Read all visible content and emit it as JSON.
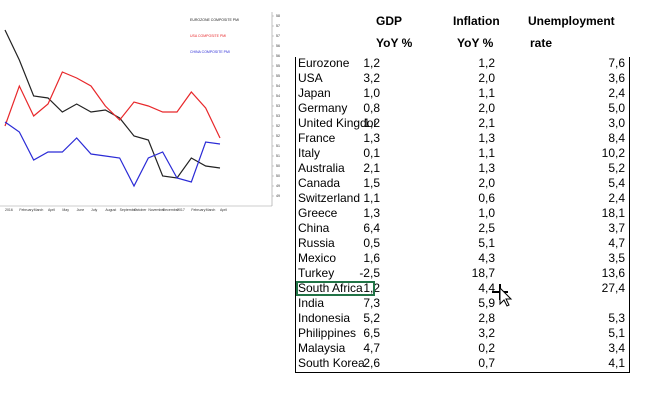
{
  "chart_data": {
    "type": "line",
    "categories": [
      "2016",
      "February",
      "March",
      "April",
      "May",
      "June",
      "July",
      "August",
      "September",
      "October",
      "November",
      "December",
      "2017",
      "February",
      "March",
      "April"
    ],
    "series": [
      {
        "name": "EUROZONE COMPOSITE PMI",
        "color": "#222222",
        "values": [
          57.3,
          55.8,
          54.0,
          53.9,
          53.2,
          53.6,
          53.2,
          53.3,
          52.9,
          52.0,
          51.8,
          50.0,
          49.9,
          50.9,
          50.5,
          50.4
        ]
      },
      {
        "name": "USA COMPOSITE PMI",
        "color": "#e8282b",
        "values": [
          52.5,
          54.5,
          53.0,
          53.6,
          55.2,
          54.9,
          54.5,
          53.5,
          52.8,
          53.7,
          53.5,
          53.2,
          53.2,
          54.2,
          53.4,
          51.9
        ]
      },
      {
        "name": "CHINA COMPOSITE PMI",
        "color": "#2b2bd6",
        "values": [
          52.7,
          52.2,
          50.8,
          51.2,
          51.2,
          51.9,
          51.1,
          51.0,
          50.9,
          49.5,
          50.9,
          51.2,
          49.9,
          49.7,
          51.7,
          51.6
        ]
      }
    ],
    "ylim": [
      48.5,
      58
    ],
    "yticks": [
      {
        "value": 58,
        "label": "58.0"
      },
      {
        "value": 57.5,
        "label": "57.5"
      },
      {
        "value": 57,
        "label": "57.0"
      },
      {
        "value": 56.5,
        "label": "56.5"
      },
      {
        "value": 56,
        "label": "56.0"
      },
      {
        "value": 55.5,
        "label": "55.5"
      },
      {
        "value": 55,
        "label": "55.0"
      },
      {
        "value": 54.5,
        "label": "54.5"
      },
      {
        "value": 54,
        "label": "54.0"
      },
      {
        "value": 53.5,
        "label": "53.5"
      },
      {
        "value": 53,
        "label": "53.0"
      },
      {
        "value": 52.5,
        "label": "52.5"
      },
      {
        "value": 52,
        "label": "52.0"
      },
      {
        "value": 51.5,
        "label": "51.5"
      },
      {
        "value": 51,
        "label": "51.0"
      },
      {
        "value": 50.5,
        "label": "50.5"
      },
      {
        "value": 50,
        "label": "50.0"
      },
      {
        "value": 49.5,
        "label": "49.5"
      },
      {
        "value": 49,
        "label": "49.0"
      }
    ]
  },
  "table": {
    "header": [
      [
        "GDP",
        "YoY %"
      ],
      [
        "Inflation",
        "YoY %"
      ],
      [
        "Unemployment",
        "rate"
      ]
    ],
    "rows": [
      [
        "Eurozone",
        "1,2",
        "1,2",
        "7,6"
      ],
      [
        "USA",
        "3,2",
        "2,0",
        "3,6"
      ],
      [
        "Japan",
        "1,0",
        "1,1",
        "2,4"
      ],
      [
        "Germany",
        "0,8",
        "2,0",
        "5,0"
      ],
      [
        "United Kingdom",
        "1,2",
        "2,1",
        "3,0"
      ],
      [
        "France",
        "1,3",
        "1,3",
        "8,4"
      ],
      [
        "Italy",
        "0,1",
        "1,1",
        "10,2"
      ],
      [
        "Australia",
        "2,1",
        "1,3",
        "5,2"
      ],
      [
        "Canada",
        "1,5",
        "2,0",
        "5,4"
      ],
      [
        "Switzerland",
        "1,1",
        "0,6",
        "2,4"
      ],
      [
        "Greece",
        "1,3",
        "1,0",
        "18,1"
      ],
      [
        "China",
        "6,4",
        "2,5",
        "3,7"
      ],
      [
        "Russia",
        "0,5",
        "5,1",
        "4,7"
      ],
      [
        "Mexico",
        "1,6",
        "4,3",
        "3,5"
      ],
      [
        "Turkey",
        "-2,5",
        "18,7",
        "13,6"
      ],
      [
        "South Africa",
        "1,2",
        "4,4",
        "27,4"
      ],
      [
        "India",
        "7,3",
        "5,9",
        null
      ],
      [
        "Indonesia",
        "5,2",
        "2,8",
        "5,3"
      ],
      [
        "Philippines",
        "6,5",
        "3,2",
        "5,1"
      ],
      [
        "Malaysia",
        "4,7",
        "0,2",
        "3,4"
      ],
      [
        "South Korea",
        "2,6",
        "0,7",
        "4,1"
      ]
    ]
  }
}
